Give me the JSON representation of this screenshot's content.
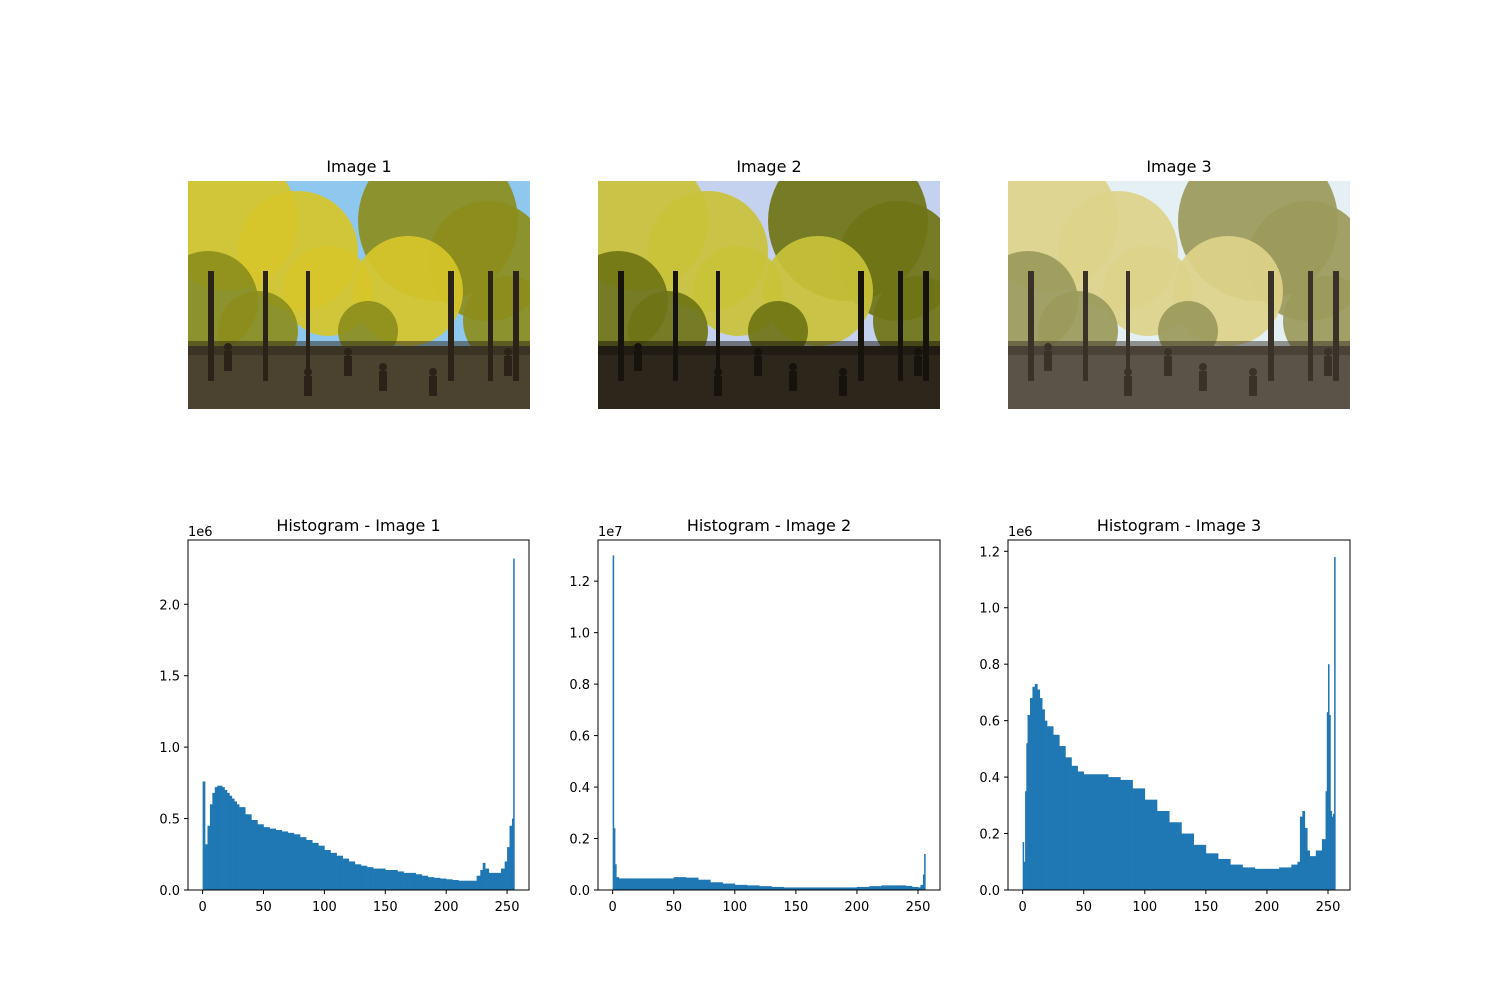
{
  "images": [
    {
      "title": "Image 1",
      "palette": {
        "sky": "#8fc8ee",
        "leafA": "#d7c62a",
        "leafB": "#8c8d1c",
        "ground": "#4b4230",
        "trunk": "#2b2318"
      }
    },
    {
      "title": "Image 2",
      "palette": {
        "sky": "#c4d2f0",
        "leafA": "#c9c238",
        "leafB": "#6f7415",
        "ground": "#2d271b",
        "trunk": "#16120c"
      }
    },
    {
      "title": "Image 3",
      "palette": {
        "sky": "#e4f0f4",
        "leafA": "#ddd38a",
        "leafB": "#9b9a5a",
        "ground": "#5b5347",
        "trunk": "#3a3128"
      }
    }
  ],
  "chart_data": [
    {
      "type": "bar",
      "title": "Histogram - Image 1",
      "xlabel": "",
      "ylabel": "",
      "offset_label": "1e6",
      "xlim": [
        -12,
        268
      ],
      "ylim": [
        0,
        2.45
      ],
      "xticks": [
        0,
        50,
        100,
        150,
        200,
        250
      ],
      "yticks": [
        0.0,
        0.5,
        1.0,
        1.5,
        2.0
      ],
      "ytick_labels": [
        "0.0",
        "0.5",
        "1.0",
        "1.5",
        "2.0"
      ],
      "color": "#1f77b4",
      "x": [
        0,
        2,
        4,
        6,
        8,
        10,
        12,
        14,
        16,
        18,
        20,
        22,
        24,
        26,
        28,
        30,
        35,
        40,
        45,
        50,
        55,
        60,
        65,
        70,
        75,
        80,
        85,
        90,
        95,
        100,
        105,
        110,
        115,
        120,
        125,
        130,
        135,
        140,
        145,
        150,
        155,
        160,
        165,
        170,
        175,
        180,
        185,
        190,
        195,
        200,
        205,
        210,
        215,
        220,
        225,
        228,
        230,
        232,
        235,
        240,
        245,
        248,
        250,
        252,
        254,
        255
      ],
      "values": [
        0.76,
        0.32,
        0.45,
        0.6,
        0.68,
        0.72,
        0.73,
        0.73,
        0.72,
        0.7,
        0.68,
        0.66,
        0.64,
        0.62,
        0.6,
        0.58,
        0.53,
        0.49,
        0.46,
        0.44,
        0.43,
        0.42,
        0.41,
        0.4,
        0.39,
        0.37,
        0.35,
        0.33,
        0.31,
        0.28,
        0.26,
        0.24,
        0.22,
        0.2,
        0.18,
        0.17,
        0.16,
        0.15,
        0.15,
        0.14,
        0.14,
        0.13,
        0.12,
        0.12,
        0.11,
        0.1,
        0.09,
        0.085,
        0.08,
        0.075,
        0.07,
        0.065,
        0.065,
        0.065,
        0.1,
        0.14,
        0.19,
        0.15,
        0.12,
        0.12,
        0.15,
        0.2,
        0.3,
        0.45,
        0.5,
        2.32
      ]
    },
    {
      "type": "bar",
      "title": "Histogram - Image 2",
      "xlabel": "",
      "ylabel": "",
      "offset_label": "1e7",
      "xlim": [
        -12,
        268
      ],
      "ylim": [
        0,
        1.36
      ],
      "xticks": [
        0,
        50,
        100,
        150,
        200,
        250
      ],
      "yticks": [
        0.0,
        0.2,
        0.4,
        0.6,
        0.8,
        1.0,
        1.2
      ],
      "ytick_labels": [
        "0.0",
        "0.2",
        "0.4",
        "0.6",
        "0.8",
        "1.0",
        "1.2"
      ],
      "color": "#1f77b4",
      "x": [
        0,
        1,
        2,
        3,
        5,
        10,
        20,
        30,
        40,
        50,
        60,
        70,
        80,
        90,
        100,
        110,
        120,
        130,
        140,
        150,
        160,
        170,
        180,
        190,
        200,
        210,
        220,
        230,
        240,
        245,
        250,
        252,
        254,
        255
      ],
      "values": [
        1.3,
        0.24,
        0.1,
        0.05,
        0.045,
        0.045,
        0.045,
        0.045,
        0.045,
        0.05,
        0.048,
        0.04,
        0.03,
        0.025,
        0.02,
        0.018,
        0.015,
        0.012,
        0.01,
        0.01,
        0.01,
        0.01,
        0.01,
        0.01,
        0.012,
        0.015,
        0.018,
        0.018,
        0.016,
        0.012,
        0.01,
        0.02,
        0.06,
        0.14
      ]
    },
    {
      "type": "bar",
      "title": "Histogram - Image 3",
      "xlabel": "",
      "ylabel": "",
      "offset_label": "1e6",
      "xlim": [
        -12,
        268
      ],
      "ylim": [
        0,
        1.24
      ],
      "xticks": [
        0,
        50,
        100,
        150,
        200,
        250
      ],
      "yticks": [
        0.0,
        0.2,
        0.4,
        0.6,
        0.8,
        1.0,
        1.2
      ],
      "ytick_labels": [
        "0.0",
        "0.2",
        "0.4",
        "0.6",
        "0.8",
        "1.0",
        "1.2"
      ],
      "color": "#1f77b4",
      "x": [
        0,
        1,
        2,
        3,
        4,
        6,
        8,
        10,
        12,
        14,
        16,
        18,
        20,
        25,
        30,
        35,
        40,
        45,
        50,
        55,
        60,
        70,
        80,
        90,
        100,
        110,
        120,
        130,
        140,
        150,
        160,
        170,
        180,
        190,
        200,
        210,
        220,
        225,
        227,
        229,
        231,
        233,
        235,
        240,
        245,
        248,
        249,
        250,
        251,
        252,
        253,
        254,
        255
      ],
      "values": [
        0.17,
        0.1,
        0.35,
        0.52,
        0.62,
        0.68,
        0.72,
        0.73,
        0.71,
        0.68,
        0.64,
        0.6,
        0.58,
        0.55,
        0.51,
        0.47,
        0.44,
        0.42,
        0.41,
        0.41,
        0.41,
        0.4,
        0.39,
        0.36,
        0.32,
        0.28,
        0.24,
        0.2,
        0.16,
        0.13,
        0.11,
        0.09,
        0.08,
        0.075,
        0.075,
        0.08,
        0.09,
        0.1,
        0.26,
        0.28,
        0.22,
        0.14,
        0.12,
        0.14,
        0.18,
        0.35,
        0.63,
        0.8,
        0.62,
        0.28,
        0.26,
        0.27,
        1.18
      ]
    }
  ]
}
